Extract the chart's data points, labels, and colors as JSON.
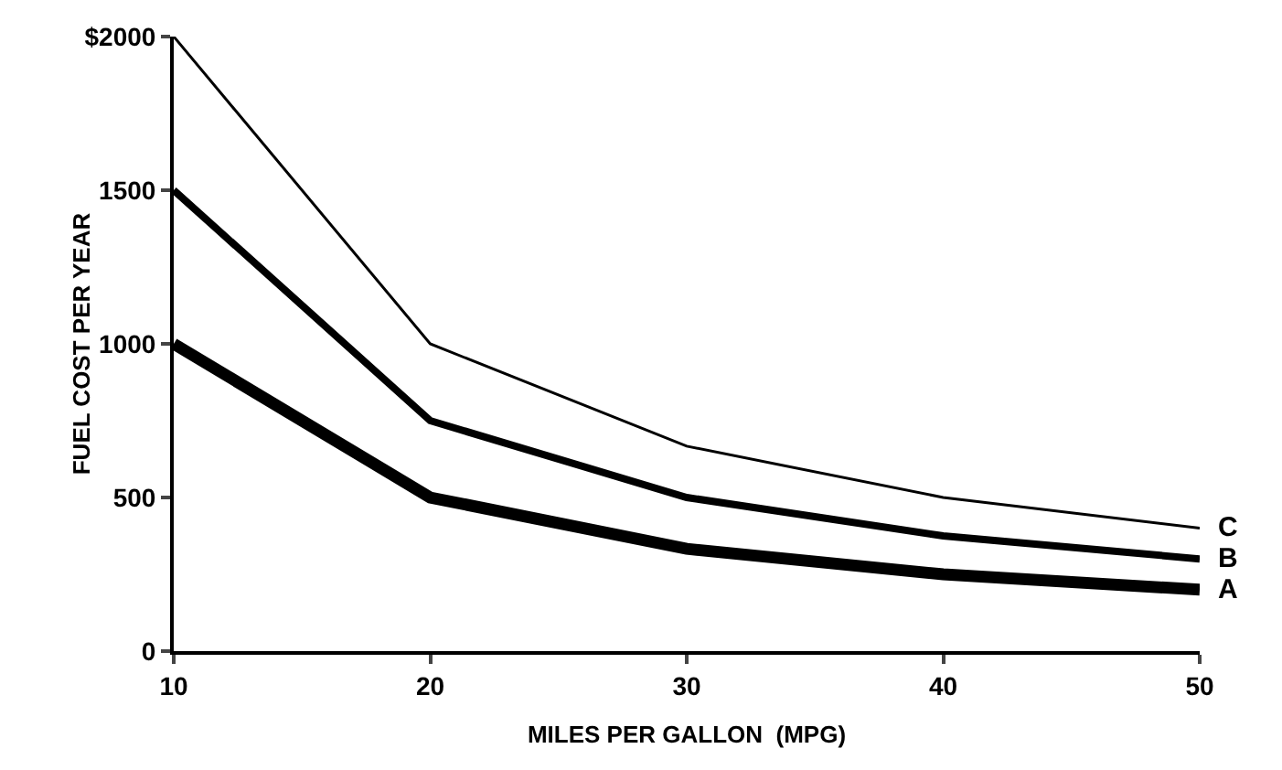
{
  "chart_data": {
    "type": "line",
    "x": [
      10,
      20,
      30,
      40,
      50
    ],
    "series": [
      {
        "name": "C",
        "color": "#000000",
        "values": [
          2000,
          1000,
          667,
          500,
          400
        ]
      },
      {
        "name": "B",
        "color": "#000000",
        "values": [
          1500,
          750,
          500,
          375,
          300
        ]
      },
      {
        "name": "A",
        "color": "#000000",
        "values": [
          1000,
          500,
          333,
          250,
          200
        ]
      }
    ],
    "xlabel": "MILES PER GALLON  (MPG)",
    "ylabel": "FUEL COST PER YEAR",
    "xlim": [
      10,
      50
    ],
    "xticks": [
      10,
      20,
      30,
      40,
      50
    ],
    "ylim": [
      0,
      2000
    ],
    "yticks": [
      0,
      500,
      1000,
      1500,
      {
        "value": 2000,
        "label": "$2000"
      }
    ],
    "grid": false,
    "legend": false,
    "marker": "none",
    "line_style": "solid"
  }
}
